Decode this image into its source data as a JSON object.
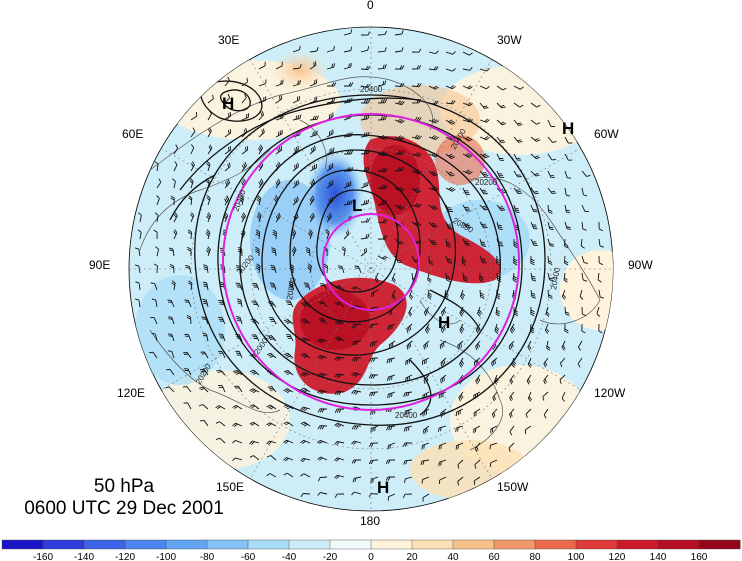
{
  "caption": {
    "level": "50 hPa",
    "time": "0600 UTC 29 Dec 2001"
  },
  "map": {
    "projection": "polar-stereographic-north",
    "longitude_labels": [
      {
        "text": "0"
      },
      {
        "text": "30W"
      },
      {
        "text": "60W"
      },
      {
        "text": "90W"
      },
      {
        "text": "120W"
      },
      {
        "text": "150W"
      },
      {
        "text": "180"
      },
      {
        "text": "150E"
      },
      {
        "text": "120E"
      },
      {
        "text": "90E"
      },
      {
        "text": "60E"
      },
      {
        "text": "30E"
      }
    ],
    "pressure_centers": [
      {
        "label": "H"
      },
      {
        "label": "H"
      },
      {
        "label": "L"
      },
      {
        "label": "H"
      },
      {
        "label": "H"
      }
    ],
    "contour_labels": [
      "20400",
      "20400",
      "20400",
      "20200",
      "20200",
      "20000",
      "20800",
      "20400",
      "20800",
      "20400",
      "20200"
    ],
    "circle_color": "#e020e0",
    "positive_color": "#b2001c",
    "negative_color": "#2040d0"
  },
  "colorbar": {
    "tick_labels": [
      "-160",
      "-140",
      "-120",
      "-100",
      "-80",
      "-60",
      "-40",
      "-20",
      "0",
      "20",
      "40",
      "60",
      "80",
      "100",
      "120",
      "140",
      "160"
    ],
    "colors": [
      "#1a14c8",
      "#2c3bd9",
      "#3d63e6",
      "#4a86ee",
      "#62a6f3",
      "#85c2f6",
      "#a8dcf7",
      "#cdeef8",
      "#f2fafc",
      "#fff3dc",
      "#fde0b4",
      "#f8c08a",
      "#f39868",
      "#ec6a4c",
      "#e0393a",
      "#cd1a2b",
      "#b50d22",
      "#95061b"
    ]
  }
}
